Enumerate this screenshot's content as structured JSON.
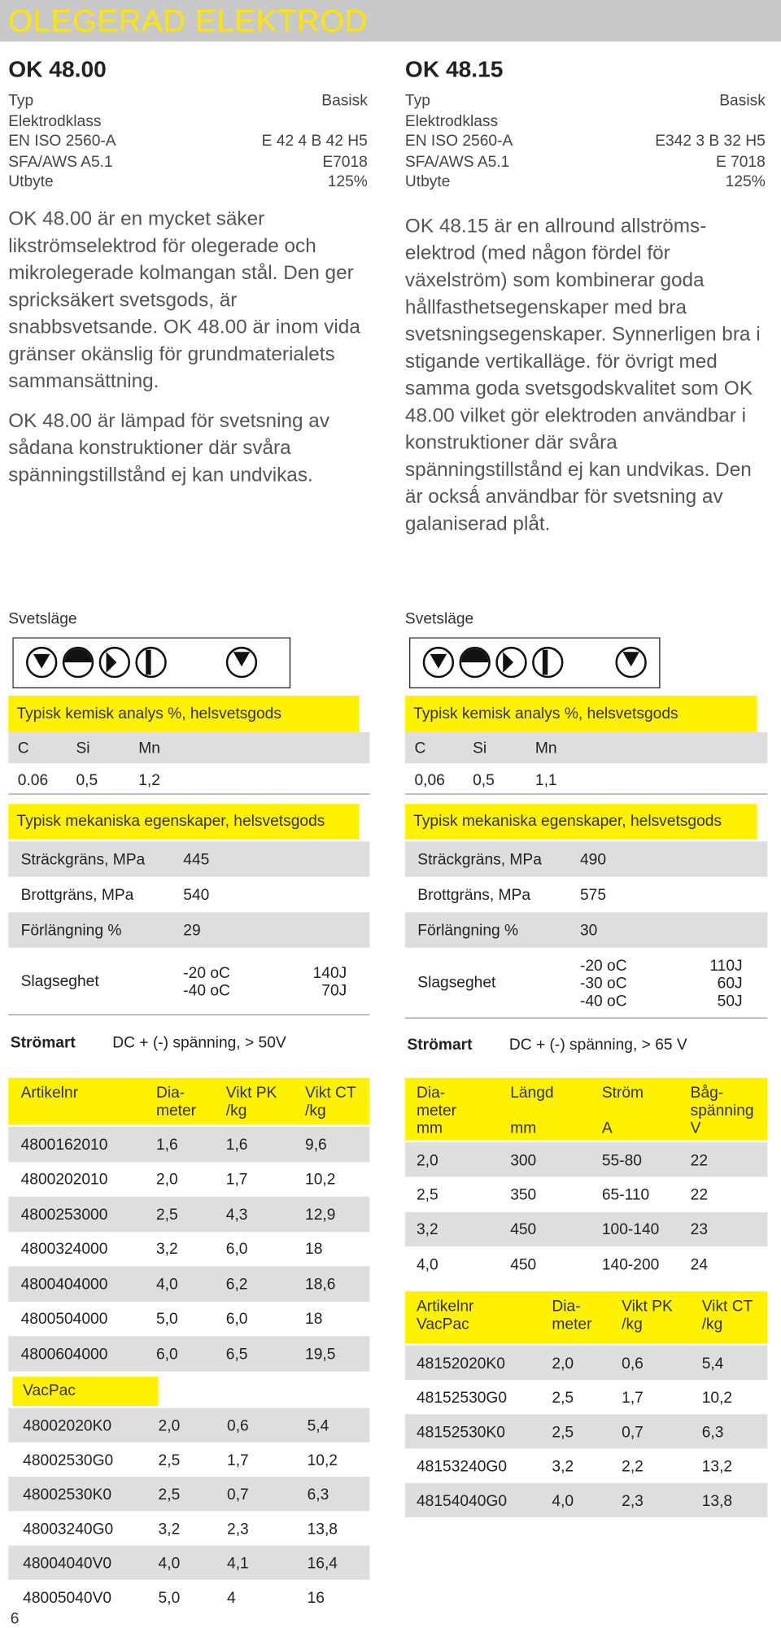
{
  "header": {
    "title": "OLEGERAD ELEKTROD"
  },
  "columns": [
    {
      "product": "OK 48.00",
      "specs": [
        [
          "Typ",
          "Basisk"
        ],
        [
          "Elektrodklass"
        ],
        [
          "EN ISO 2560-A",
          "E 42 4 B 42 H5"
        ],
        [
          "SFA/AWS A5.1",
          "E7018"
        ],
        [
          "Utbyte",
          "125%"
        ]
      ],
      "paragraphs": [
        "OK 48.00 är en mycket säker likströmselektrod för olegerade och mikrolegerade kolmangan stål. Den ger spricksäkert svetsgods, är snabbsvetsande. OK 48.00 är inom vida gränser okänslig för grund­materialets sammansättning.",
        "OK 48.00 är lämpad för svetsning av sådana konstruktioner där svåra spänningstillstånd ej kan undvikas."
      ],
      "position_label": "Svetsläge",
      "chemistry": {
        "title": "Typisk kemisk analys %, helsvetsgods",
        "header": [
          "C",
          "Si",
          "Mn"
        ],
        "values": [
          "0.06",
          "0,5",
          "1,2"
        ]
      },
      "mechanical": {
        "title": "Typisk mekaniska egenskaper, helsvetsgods",
        "rows": [
          [
            "Sträckgräns, MPa",
            "445"
          ],
          [
            "Brottgräns, MPa",
            "540"
          ],
          [
            "Förlängning %",
            "29"
          ]
        ],
        "impact": {
          "label": "Slagseghet",
          "temperatures": [
            "-20 oC",
            "-40 oC"
          ],
          "energies": [
            "140J",
            "70J"
          ]
        }
      },
      "current": {
        "label": "Strömart",
        "value": "DC + (-) spänning, > 50V"
      },
      "tables": [
        {
          "header": [
            "Artikelnr",
            "Dia-\nmeter",
            "Vikt PK\n/kg",
            "Vikt CT\n/kg"
          ],
          "rows": [
            [
              "4800162010",
              "1,6",
              "1,6",
              "9,6"
            ],
            [
              "4800202010",
              "2,0",
              "1,7",
              "10,2"
            ],
            [
              "4800253000",
              "2,5",
              "4,3",
              "12,9"
            ],
            [
              "4800324000",
              "3,2",
              "6,0",
              "18"
            ],
            [
              "4800404000",
              "4,0",
              "6,2",
              "18,6"
            ],
            [
              "4800504000",
              "5,0",
              "6,0",
              "18"
            ],
            [
              "4800604000",
              "6,0",
              "6,5",
              "19,5"
            ]
          ]
        },
        {
          "header": [
            "VacPac"
          ],
          "rows": [
            [
              "48002020K0",
              "2,0",
              "0,6",
              "5,4"
            ],
            [
              "48002530G0",
              "2,5",
              "1,7",
              "10,2"
            ],
            [
              "48002530K0",
              "2,5",
              "0,7",
              "6,3"
            ],
            [
              "48003240G0",
              "3,2",
              "2,3",
              "13,8"
            ],
            [
              "48004040V0",
              "4,0",
              "4,1",
              "16,4"
            ],
            [
              "48005040V0",
              "5,0",
              "4",
              "16"
            ]
          ]
        }
      ]
    },
    {
      "product": "OK 48.15",
      "specs": [
        [
          "Typ",
          "Basisk"
        ],
        [
          "Elektrodklass"
        ],
        [
          "EN ISO 2560-A",
          "E342 3 B 32 H5"
        ],
        [
          "SFA/AWS A5.1",
          "E 7018"
        ],
        [
          "Utbyte",
          "125%"
        ]
      ],
      "paragraphs": [
        "OK 48.15 är en allround allströms­elektrod (med någon fördel för växelström) som kombinerar goda hållfasthetsegenskaper med bra svetsningsegenskaper. Synnerligen bra i stigande vertikalläge. för övrigt med samma goda svetsgodskvalitet som OK 48.00 vilket gör elektroden användbar i konstruktioner där svåra spänningstillstånd ej kan undvikas. Den är ocksǻ användbar för svetsn­ing av galaniserad plåt."
      ],
      "position_label": "Svetsläge",
      "chemistry": {
        "title": "Typisk kemisk analys %, helsvetsgods",
        "header": [
          "C",
          "Si",
          "Mn"
        ],
        "values": [
          "0,06",
          "0,5",
          "1,1"
        ]
      },
      "mechanical": {
        "title": "Typisk mekaniska egenskaper, helsvetsgods",
        "rows": [
          [
            "Sträckgräns, MPa",
            "490"
          ],
          [
            "Brottgräns, MPa",
            "575"
          ],
          [
            "Förlängning %",
            "30"
          ]
        ],
        "impact": {
          "label": "Slagseghet",
          "temperatures": [
            "-20 oC",
            "-30 oC",
            "-40 oC"
          ],
          "energies": [
            "110J",
            "60J",
            "50J"
          ]
        }
      },
      "current": {
        "label": "Strömart",
        "value": "DC + (-) spänning, > 65 V"
      },
      "tables": [
        {
          "header": [
            "Dia-\nmeter\nmm",
            "Längd\n\nmm",
            "Ström\n\nA",
            "Båg-\nspänning\nV"
          ],
          "rows": [
            [
              "2,0",
              "300",
              "55-80",
              "22"
            ],
            [
              "2,5",
              "350",
              "65-110",
              "22"
            ],
            [
              "3,2",
              "450",
              "100-140",
              "23"
            ],
            [
              "4,0",
              "450",
              "140-200",
              "24"
            ]
          ]
        },
        {
          "header": [
            "Artikelnr\nVacPac",
            "Dia-\nmeter",
            "Vikt PK\n/kg",
            "Vikt CT\n/kg"
          ],
          "rows": [
            [
              "48152020K0",
              "2,0",
              "0,6",
              "5,4"
            ],
            [
              "48152530G0",
              "2,5",
              "1,7",
              "10,2"
            ],
            [
              "48152530K0",
              "2,5",
              "0,7",
              "6,3"
            ],
            [
              "48153240G0",
              "3,2",
              "2,2",
              "13,2"
            ],
            [
              "48154040G0",
              "4,0",
              "2,3",
              "13,8"
            ]
          ]
        }
      ]
    }
  ],
  "footer": {
    "page": "6"
  }
}
